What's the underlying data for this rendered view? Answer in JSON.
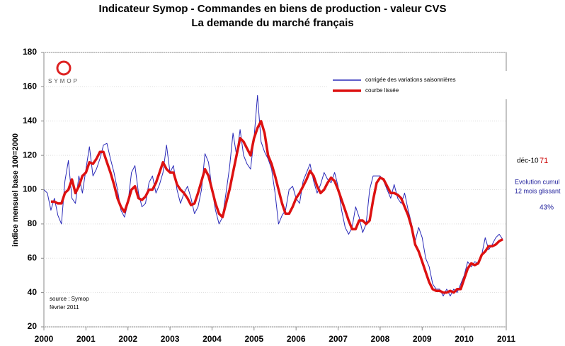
{
  "chart_data": {
    "type": "line",
    "title": "Indicateur Symop - Commandes en biens de production  -  valeur CVS",
    "subtitle": "La demande du marché français",
    "y_label": "indice mensuel base 100=2000",
    "logo": "SYMOP",
    "source": [
      "source : Symop",
      "février 2011"
    ],
    "annotations": {
      "last_month": "déc-10",
      "last_value": 71,
      "cumul_label": [
        "Evolution cumul",
        "12 mois glissant"
      ],
      "cumul_value": "43%"
    },
    "xlim": [
      2000,
      2011
    ],
    "xticks": [
      2000,
      2001,
      2002,
      2003,
      2004,
      2005,
      2006,
      2007,
      2008,
      2009,
      2010,
      2011
    ],
    "ylim": [
      20,
      180
    ],
    "yticks": [
      20,
      40,
      60,
      80,
      100,
      120,
      140,
      160,
      180
    ],
    "grid": true,
    "legend": "upper right",
    "x": [
      2000.0,
      2000.083,
      2000.167,
      2000.25,
      2000.333,
      2000.417,
      2000.5,
      2000.583,
      2000.667,
      2000.75,
      2000.833,
      2000.917,
      2001.0,
      2001.083,
      2001.167,
      2001.25,
      2001.333,
      2001.417,
      2001.5,
      2001.583,
      2001.667,
      2001.75,
      2001.833,
      2001.917,
      2002.0,
      2002.083,
      2002.167,
      2002.25,
      2002.333,
      2002.417,
      2002.5,
      2002.583,
      2002.667,
      2002.75,
      2002.833,
      2002.917,
      2003.0,
      2003.083,
      2003.167,
      2003.25,
      2003.333,
      2003.417,
      2003.5,
      2003.583,
      2003.667,
      2003.75,
      2003.833,
      2003.917,
      2004.0,
      2004.083,
      2004.167,
      2004.25,
      2004.333,
      2004.417,
      2004.5,
      2004.583,
      2004.667,
      2004.75,
      2004.833,
      2004.917,
      2005.0,
      2005.083,
      2005.167,
      2005.25,
      2005.333,
      2005.417,
      2005.5,
      2005.583,
      2005.667,
      2005.75,
      2005.833,
      2005.917,
      2006.0,
      2006.083,
      2006.167,
      2006.25,
      2006.333,
      2006.417,
      2006.5,
      2006.583,
      2006.667,
      2006.75,
      2006.833,
      2006.917,
      2007.0,
      2007.083,
      2007.167,
      2007.25,
      2007.333,
      2007.417,
      2007.5,
      2007.583,
      2007.667,
      2007.75,
      2007.833,
      2007.917,
      2008.0,
      2008.083,
      2008.167,
      2008.25,
      2008.333,
      2008.417,
      2008.5,
      2008.583,
      2008.667,
      2008.75,
      2008.833,
      2008.917,
      2009.0,
      2009.083,
      2009.167,
      2009.25,
      2009.333,
      2009.417,
      2009.5,
      2009.583,
      2009.667,
      2009.75,
      2009.833,
      2009.917,
      2010.0,
      2010.083,
      2010.167,
      2010.25,
      2010.333,
      2010.417,
      2010.5,
      2010.583,
      2010.667,
      2010.75,
      2010.833,
      2010.917
    ],
    "series": [
      {
        "name": "corrigée des variations saisonnières",
        "color": "#2a2ab8",
        "width": 1,
        "values": [
          100,
          98,
          88,
          95,
          85,
          80,
          105,
          117,
          95,
          92,
          108,
          98,
          112,
          125,
          108,
          112,
          118,
          126,
          127,
          118,
          110,
          100,
          88,
          84,
          92,
          110,
          114,
          98,
          90,
          92,
          104,
          108,
          98,
          103,
          110,
          126,
          110,
          114,
          100,
          92,
          98,
          102,
          95,
          86,
          90,
          100,
          121,
          116,
          100,
          88,
          80,
          84,
          98,
          113,
          133,
          120,
          135,
          120,
          115,
          112,
          130,
          155,
          128,
          122,
          118,
          112,
          98,
          80,
          85,
          88,
          100,
          102,
          95,
          92,
          105,
          110,
          115,
          105,
          98,
          103,
          110,
          106,
          104,
          110,
          102,
          88,
          78,
          74,
          78,
          90,
          84,
          75,
          80,
          100,
          108,
          108,
          108,
          105,
          100,
          95,
          103,
          95,
          92,
          98,
          88,
          80,
          70,
          78,
          72,
          60,
          55,
          45,
          42,
          42,
          38,
          42,
          38,
          42,
          40,
          45,
          50,
          58,
          55,
          58,
          57,
          62,
          72,
          65,
          68,
          72,
          74,
          71
        ]
      },
      {
        "name": "courbe lissée",
        "color": "#dd1111",
        "width": 3.5,
        "values": [
          null,
          null,
          93,
          93,
          92,
          92,
          98,
          100,
          106,
          98,
          102,
          108,
          110,
          116,
          115,
          118,
          122,
          122,
          116,
          110,
          103,
          95,
          90,
          87,
          93,
          100,
          102,
          95,
          94,
          96,
          100,
          100,
          104,
          110,
          116,
          112,
          110,
          110,
          103,
          100,
          98,
          95,
          91,
          92,
          98,
          105,
          112,
          108,
          100,
          92,
          86,
          84,
          92,
          100,
          110,
          120,
          130,
          128,
          124,
          120,
          130,
          136,
          140,
          133,
          120,
          115,
          108,
          100,
          92,
          86,
          86,
          90,
          95,
          98,
          102,
          106,
          111,
          108,
          102,
          98,
          100,
          104,
          107,
          105,
          100,
          94,
          88,
          82,
          77,
          77,
          82,
          82,
          80,
          82,
          94,
          104,
          107,
          106,
          102,
          98,
          98,
          97,
          95,
          90,
          85,
          78,
          68,
          64,
          58,
          52,
          46,
          42,
          41,
          41,
          40,
          40,
          41,
          40,
          42,
          42,
          48,
          54,
          57,
          56,
          57,
          62,
          64,
          67,
          67,
          68,
          70,
          71
        ]
      }
    ]
  }
}
